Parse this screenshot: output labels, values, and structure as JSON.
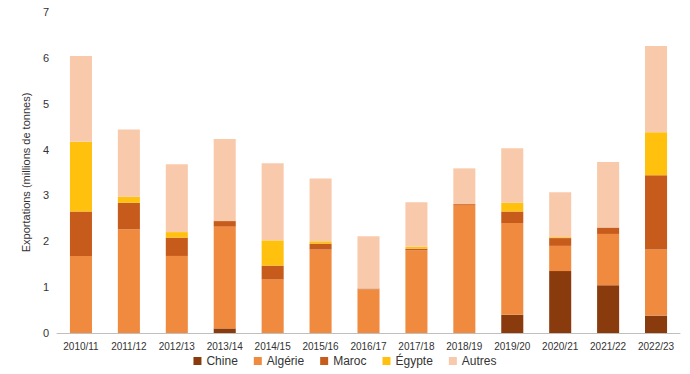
{
  "chart_data": {
    "type": "bar",
    "stacked": true,
    "y_label": "Exportations (millions de tonnes)",
    "categories": [
      "2010/11",
      "2011/12",
      "2012/13",
      "2013/14",
      "2014/15",
      "2015/16",
      "2016/17",
      "2017/18",
      "2018/19",
      "2019/20",
      "2020/21",
      "2021/22",
      "2022/23"
    ],
    "series": [
      {
        "name": "Chine",
        "color": "#8a3b0e",
        "values": [
          0,
          0,
          0,
          0.1,
          0,
          0,
          0,
          0,
          0,
          0.4,
          1.35,
          1.04,
          0.38
        ]
      },
      {
        "name": "Algérie",
        "color": "#ef8a3e",
        "values": [
          1.68,
          2.26,
          1.68,
          2.22,
          1.17,
          1.82,
          0.95,
          1.8,
          2.79,
          2.0,
          0.55,
          1.12,
          1.44
        ]
      },
      {
        "name": "Maroc",
        "color": "#c75b1b",
        "values": [
          0.97,
          0.58,
          0.4,
          0.12,
          0.3,
          0.13,
          0.02,
          0.04,
          0.02,
          0.25,
          0.17,
          0.14,
          1.62
        ]
      },
      {
        "name": "Égypte",
        "color": "#ffc10e",
        "values": [
          1.52,
          0.13,
          0.12,
          0,
          0.55,
          0.05,
          0,
          0.04,
          0,
          0.19,
          0.02,
          0,
          0.94
        ]
      },
      {
        "name": "Autres",
        "color": "#f8caab",
        "values": [
          1.87,
          1.47,
          1.48,
          1.79,
          1.68,
          1.37,
          1.14,
          0.97,
          0.78,
          1.19,
          0.98,
          1.43,
          1.88
        ]
      }
    ],
    "ylim": [
      0,
      7
    ],
    "yticks": [
      0,
      1,
      2,
      3,
      4,
      5,
      6,
      7
    ],
    "grid": false,
    "legend": "bottom"
  }
}
